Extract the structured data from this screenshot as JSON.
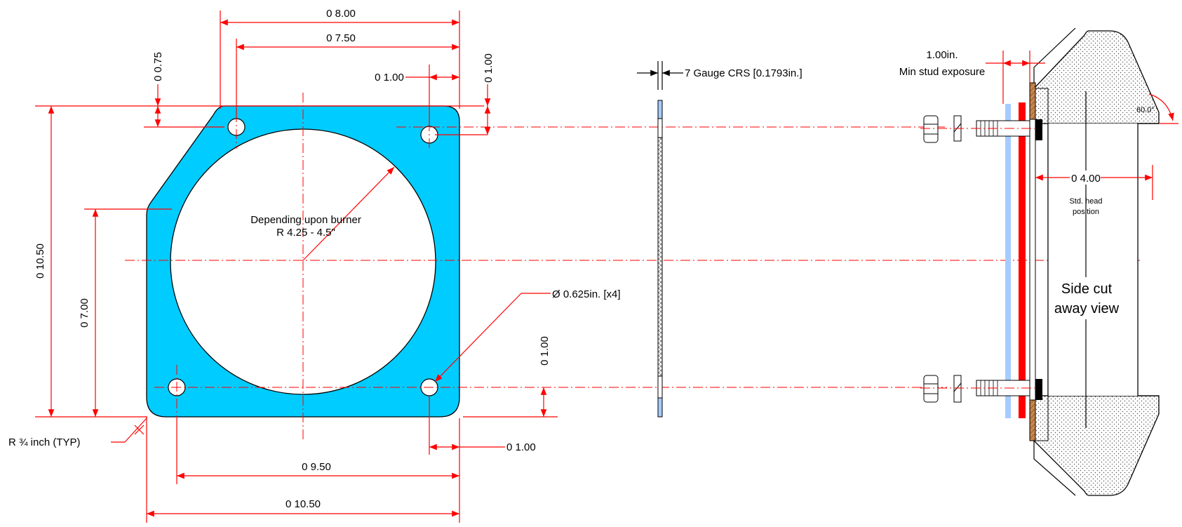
{
  "colors": {
    "plate_fill": "#00CCFF",
    "dimension_lines": "#FF0000",
    "gasket_blue": "#A6CCFF",
    "gasket_red": "#FF0000",
    "mount_plate": "#C8864A"
  },
  "front_view": {
    "dim_width_total": "0 8.00",
    "dim_hole_spacing_top": "0 7.50",
    "dim_top_edge": "0 0.75",
    "dim_hole_from_right": "0 1.00",
    "dim_hole_from_top": "0 1.00",
    "dim_overall_height": "0 10.50",
    "dim_angled_height": "0 7.00",
    "dim_hole_from_bottom": "0 1.00",
    "dim_bottom_hole_right": "0 1.00",
    "dim_hole_spacing_bottom": "0 9.50",
    "dim_overall_width": "0 10.50",
    "bore_note_line1": "Depending upon burner",
    "bore_note_line2": "R 4.25 - 4.5\"",
    "hole_note": "Ø 0.625in. [x4]",
    "corner_radius_note": "R ¾ inch (TYP)"
  },
  "plate_side_view": {
    "thickness_note": "7 Gauge CRS [0.1793in.]"
  },
  "cutaway_view": {
    "stud_exposure_line1": "1.00in.",
    "stud_exposure_line2": "Min stud exposure",
    "angle_label": "60.0°",
    "head_dim": "0 4.00",
    "head_note_line1": "Std. head",
    "head_note_line2": "position",
    "view_title_line1": "Side cut",
    "view_title_line2": "away view"
  }
}
